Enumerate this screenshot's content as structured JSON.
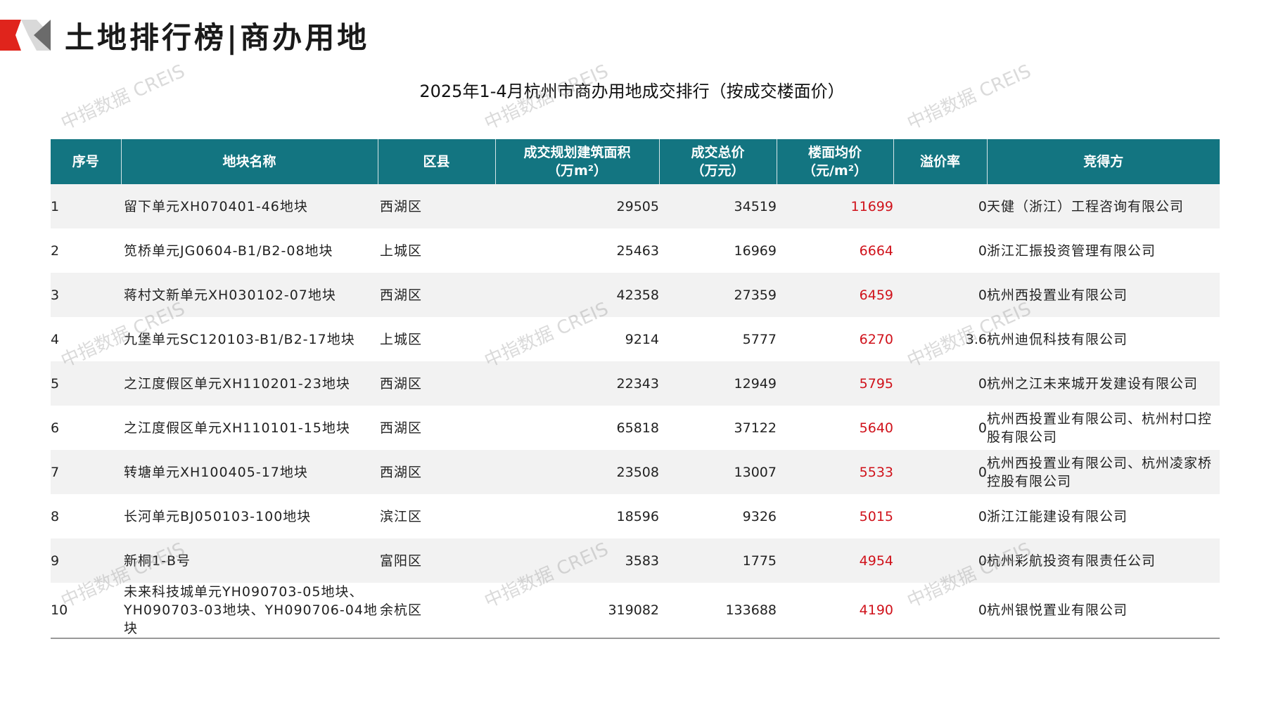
{
  "header": {
    "title": "土地排行榜|商办用地"
  },
  "table_title": "2025年1-4月杭州市商办用地成交排行（按成交楼面价）",
  "columns": [
    "序号",
    "地块名称",
    "区县",
    "成交规划建筑面积\n（万m²）",
    "成交总价\n（万元）",
    "楼面均价\n（元/m²）",
    "溢价率",
    "竞得方"
  ],
  "rows": [
    {
      "idx": "1",
      "name": "留下单元XH070401-46地块",
      "district": "西湖区",
      "area": "29505",
      "total": "34519",
      "price": "11699",
      "premium": "0",
      "buyer": "天健（浙江）工程咨询有限公司"
    },
    {
      "idx": "2",
      "name": "笕桥单元JG0604-B1/B2-08地块",
      "district": "上城区",
      "area": "25463",
      "total": "16969",
      "price": "6664",
      "premium": "0",
      "buyer": "浙江汇振投资管理有限公司"
    },
    {
      "idx": "3",
      "name": "蒋村文新单元XH030102-07地块",
      "district": "西湖区",
      "area": "42358",
      "total": "27359",
      "price": "6459",
      "premium": "0",
      "buyer": "杭州西投置业有限公司"
    },
    {
      "idx": "4",
      "name": "九堡单元SC120103-B1/B2-17地块",
      "district": "上城区",
      "area": "9214",
      "total": "5777",
      "price": "6270",
      "premium": "3.6",
      "buyer": "杭州迪侃科技有限公司"
    },
    {
      "idx": "5",
      "name": "之江度假区单元XH110201-23地块",
      "district": "西湖区",
      "area": "22343",
      "total": "12949",
      "price": "5795",
      "premium": "0",
      "buyer": "杭州之江未来城开发建设有限公司"
    },
    {
      "idx": "6",
      "name": "之江度假区单元XH110101-15地块",
      "district": "西湖区",
      "area": "65818",
      "total": "37122",
      "price": "5640",
      "premium": "0",
      "buyer": "杭州西投置业有限公司、杭州村口控股有限公司"
    },
    {
      "idx": "7",
      "name": "转塘单元XH100405-17地块",
      "district": "西湖区",
      "area": "23508",
      "total": "13007",
      "price": "5533",
      "premium": "0",
      "buyer": "杭州西投置业有限公司、杭州凌家桥控股有限公司"
    },
    {
      "idx": "8",
      "name": "长河单元BJ050103-100地块",
      "district": "滨江区",
      "area": "18596",
      "total": "9326",
      "price": "5015",
      "premium": "0",
      "buyer": "浙江江能建设有限公司"
    },
    {
      "idx": "9",
      "name": "新桐1-B号",
      "district": "富阳区",
      "area": "3583",
      "total": "1775",
      "price": "4954",
      "premium": "0",
      "buyer": "杭州彩航投资有限责任公司"
    },
    {
      "idx": "10",
      "name": "未来科技城单元YH090703-05地块、YH090703-03地块、YH090706-04地块",
      "district": "余杭区",
      "area": "319082",
      "total": "133688",
      "price": "4190",
      "premium": "0",
      "buyer": "杭州银悦置业有限公司"
    }
  ],
  "watermark": "中指数据 CREIS",
  "colors": {
    "header_bg": "#137581",
    "price_text": "#d0121b",
    "logo_red": "#e0241c",
    "logo_gray": "#8a8a8a"
  }
}
